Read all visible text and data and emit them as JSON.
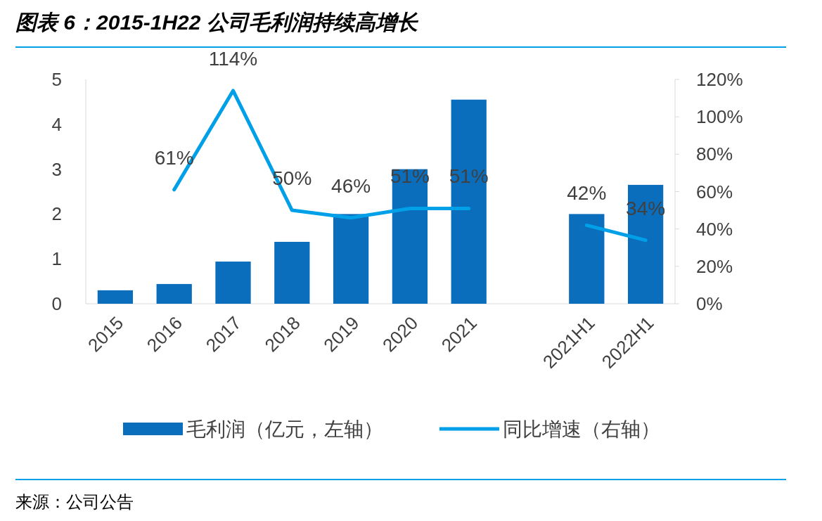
{
  "chart_data": {
    "type": "bar",
    "title": "图表 6：2015-1H22 公司毛利润持续高增长",
    "categories": [
      "2015",
      "2016",
      "2017",
      "2018",
      "2019",
      "2020",
      "2021",
      null,
      "2021H1",
      "2022H1"
    ],
    "series": [
      {
        "name": "毛利润（亿元，左轴）",
        "color": "#0a6ebd",
        "values": [
          0.3,
          0.44,
          0.94,
          1.38,
          2.0,
          3.0,
          4.55,
          null,
          2.0,
          2.65
        ]
      },
      {
        "name": "同比增速（右轴）",
        "type": "line",
        "axis": "y2",
        "color": "#00a0e9",
        "values": [
          null,
          61,
          114,
          50,
          46,
          51,
          51,
          null,
          42,
          34
        ],
        "value_labels": [
          null,
          "61%",
          "114%",
          "50%",
          "46%",
          "51%",
          "51%",
          null,
          "42%",
          "34%"
        ]
      }
    ],
    "ylim": [
      0,
      5
    ],
    "yticks": [
      0,
      1,
      2,
      3,
      4,
      5
    ],
    "y2lim": [
      0,
      120
    ],
    "y2ticks": [
      {
        "value": 0,
        "label": "0%"
      },
      {
        "value": 20,
        "label": "20%"
      },
      {
        "value": 40,
        "label": "40%"
      },
      {
        "value": 60,
        "label": "60%"
      },
      {
        "value": 80,
        "label": "80%"
      },
      {
        "value": 100,
        "label": "100%"
      },
      {
        "value": 120,
        "label": "120%"
      }
    ],
    "legend": "bottom",
    "annotations": [
      "来源：公司公告"
    ]
  }
}
